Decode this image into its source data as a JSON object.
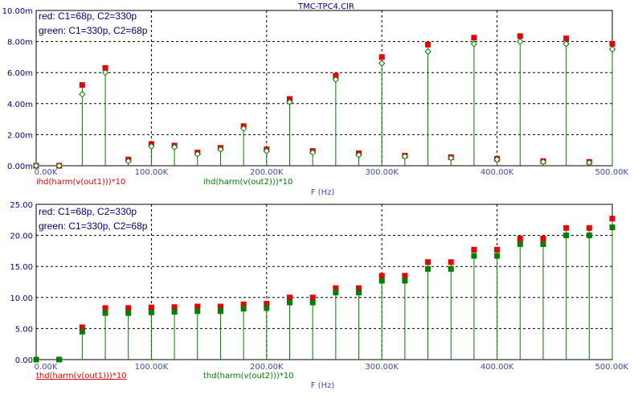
{
  "title": "TMC-TPC4.CIR",
  "colors": {
    "red": "#ee0000",
    "green": "#008000",
    "axis": "#000000",
    "tick": "#0000aa",
    "xlabel": "#4444cc",
    "grid": "#000000"
  },
  "chart_data": [
    {
      "type": "bar",
      "style": "stem",
      "legend": [
        "red: C1=68p, C2=330p",
        "green: C1=330p, C2=68p"
      ],
      "legend_placement": "top-left",
      "xlabel": "F (Hz)",
      "trace_labels": [
        {
          "text": "ihd(harm(v(out1)))*10",
          "color": "red",
          "underline": false
        },
        {
          "text": "ihd(harm(v(out2)))*10",
          "color": "green",
          "underline": false
        }
      ],
      "xlim": [
        0,
        500000
      ],
      "ylim": [
        0,
        10
      ],
      "x_ticks": [
        "0.00K",
        "100.00K",
        "200.00K",
        "300.00K",
        "400.00K",
        "500.00K"
      ],
      "y_ticks": [
        "0.00m",
        "2.00m",
        "4.00m",
        "6.00m",
        "8.00m",
        "10.00m"
      ],
      "grid": true,
      "x": [
        0,
        20000,
        40000,
        60000,
        80000,
        100000,
        120000,
        140000,
        160000,
        180000,
        200000,
        220000,
        240000,
        260000,
        280000,
        300000,
        320000,
        340000,
        360000,
        380000,
        400000,
        420000,
        440000,
        460000,
        480000,
        500000
      ],
      "series": [
        {
          "name": "red: C1=68p, C2=330p",
          "marker": "square",
          "values": [
            0,
            0,
            5.2,
            6.3,
            0.4,
            1.4,
            1.3,
            0.85,
            1.15,
            2.55,
            1.05,
            4.3,
            0.95,
            5.8,
            0.8,
            7.0,
            0.65,
            7.8,
            0.55,
            8.25,
            0.45,
            8.35,
            0.3,
            8.2,
            0.25,
            7.85
          ]
        },
        {
          "name": "green: C1=330p, C2=68p",
          "marker": "diamond",
          "values": [
            0,
            0,
            4.6,
            6.0,
            0.3,
            1.25,
            1.2,
            0.75,
            1.05,
            2.4,
            0.95,
            4.1,
            0.85,
            5.55,
            0.7,
            6.6,
            0.6,
            7.35,
            0.5,
            7.85,
            0.4,
            8.0,
            0.25,
            7.85,
            0.2,
            7.5
          ]
        }
      ]
    },
    {
      "type": "bar",
      "style": "stem",
      "legend": [
        "red: C1=68p, C2=330p",
        "green: C1=330p, C2=68p"
      ],
      "legend_placement": "top-left",
      "xlabel": "F (Hz)",
      "trace_labels": [
        {
          "text": "thd(harm(v(out1)))*10",
          "color": "red",
          "underline": true
        },
        {
          "text": "thd(harm(v(out2)))*10",
          "color": "green",
          "underline": false
        }
      ],
      "xlim": [
        0,
        500000
      ],
      "ylim": [
        0,
        25
      ],
      "x_ticks": [
        "0.00K",
        "100.00K",
        "200.00K",
        "300.00K",
        "400.00K",
        "500.00K"
      ],
      "y_ticks": [
        "0.00",
        "5.00",
        "10.00",
        "15.00",
        "20.00",
        "25.00"
      ],
      "grid": true,
      "x": [
        0,
        20000,
        40000,
        60000,
        80000,
        100000,
        120000,
        140000,
        160000,
        180000,
        200000,
        220000,
        240000,
        260000,
        280000,
        300000,
        320000,
        340000,
        360000,
        380000,
        400000,
        420000,
        440000,
        460000,
        480000,
        500000
      ],
      "series": [
        {
          "name": "red: C1=68p, C2=330p",
          "marker": "square",
          "values": [
            0,
            0,
            5.2,
            8.3,
            8.3,
            8.4,
            8.45,
            8.55,
            8.55,
            8.9,
            9.0,
            10.0,
            10.0,
            11.5,
            11.5,
            13.5,
            13.5,
            15.7,
            15.7,
            17.7,
            17.7,
            19.5,
            19.5,
            21.2,
            21.2,
            22.7
          ]
        },
        {
          "name": "green: C1=330p, C2=68p",
          "marker": "square",
          "values": [
            0,
            0,
            4.5,
            7.5,
            7.5,
            7.6,
            7.7,
            7.8,
            7.8,
            8.2,
            8.3,
            9.2,
            9.2,
            10.8,
            10.8,
            12.7,
            12.7,
            14.6,
            14.6,
            16.7,
            16.7,
            18.6,
            18.6,
            20.0,
            20.0,
            21.3
          ]
        }
      ]
    }
  ]
}
